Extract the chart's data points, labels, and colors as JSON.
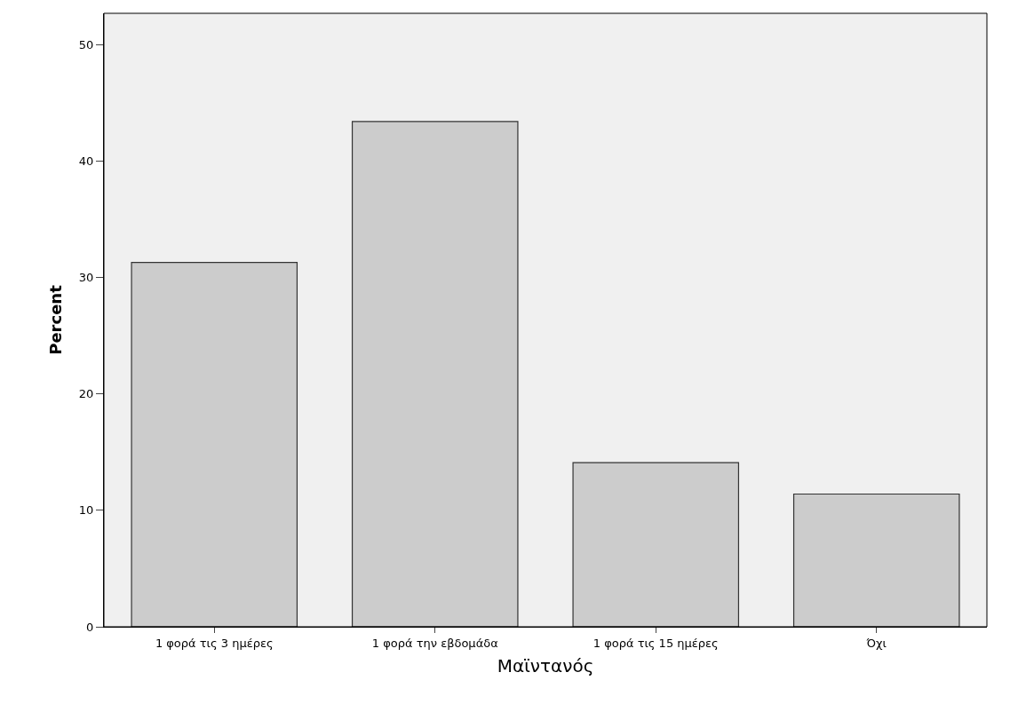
{
  "chart_data": {
    "type": "bar",
    "xlabel": "Μαϊντανός",
    "ylabel": "Percent",
    "categories": [
      "1 φορά τις 3 ημέρες",
      "1 φορά την εβδομάδα",
      "1 φορά τις 15 ημέρες",
      "Όχι"
    ],
    "values": [
      31.3,
      43.4,
      14.1,
      11.4
    ],
    "color": "#cccccc",
    "ylim": [
      0,
      52.7
    ],
    "yticks": [
      0,
      10,
      20,
      30,
      40,
      50
    ],
    "grid": false
  }
}
